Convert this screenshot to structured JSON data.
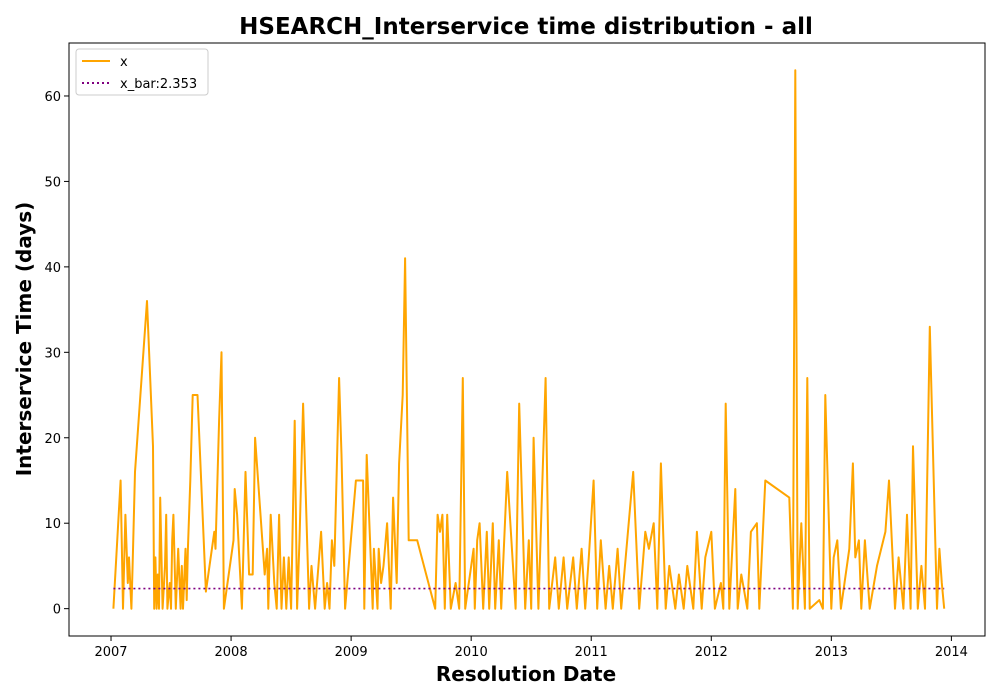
{
  "chart_data": {
    "type": "line",
    "title": "HSEARCH_Interservice time distribution - all",
    "xlabel": "Resolution Date",
    "ylabel": "Interservice Time (days)",
    "xlim": [
      2006.65,
      2014.28
    ],
    "ylim": [
      -3.2,
      66.2
    ],
    "xticks": [
      2007,
      2008,
      2009,
      2010,
      2011,
      2012,
      2013,
      2014
    ],
    "xtick_labels": [
      "2007",
      "2008",
      "2009",
      "2010",
      "2011",
      "2012",
      "2013",
      "2014"
    ],
    "yticks": [
      0,
      10,
      20,
      30,
      40,
      50,
      60
    ],
    "ytick_labels": [
      "0",
      "10",
      "20",
      "30",
      "40",
      "50",
      "60"
    ],
    "grid": false,
    "legend_position": "upper-left",
    "colors": {
      "series": "#ffa500",
      "mean": "#800080"
    },
    "series": [
      {
        "name": "x",
        "style": "solid",
        "x": [
          2007.02,
          2007.08,
          2007.1,
          2007.12,
          2007.14,
          2007.15,
          2007.17,
          2007.18,
          2007.2,
          2007.3,
          2007.35,
          2007.36,
          2007.37,
          2007.38,
          2007.39,
          2007.4,
          2007.41,
          2007.43,
          2007.45,
          2007.46,
          2007.47,
          2007.49,
          2007.5,
          2007.51,
          2007.52,
          2007.54,
          2007.56,
          2007.58,
          2007.59,
          2007.6,
          2007.62,
          2007.63,
          2007.64,
          2007.66,
          2007.68,
          2007.72,
          2007.79,
          2007.86,
          2007.87,
          2007.9,
          2007.92,
          2007.94,
          2008.02,
          2008.03,
          2008.05,
          2008.09,
          2008.12,
          2008.15,
          2008.18,
          2008.2,
          2008.28,
          2008.3,
          2008.31,
          2008.33,
          2008.36,
          2008.38,
          2008.4,
          2008.42,
          2008.44,
          2008.46,
          2008.48,
          2008.5,
          2008.53,
          2008.55,
          2008.57,
          2008.6,
          2008.65,
          2008.67,
          2008.7,
          2008.75,
          2008.78,
          2008.8,
          2008.82,
          2008.84,
          2008.86,
          2008.9,
          2008.92,
          2008.95,
          2009.04,
          2009.1,
          2009.11,
          2009.13,
          2009.18,
          2009.19,
          2009.22,
          2009.23,
          2009.25,
          2009.27,
          2009.3,
          2009.33,
          2009.35,
          2009.38,
          2009.4,
          2009.43,
          2009.45,
          2009.48,
          2009.55,
          2009.7,
          2009.72,
          2009.74,
          2009.76,
          2009.78,
          2009.8,
          2009.83,
          2009.87,
          2009.9,
          2009.93,
          2009.95,
          2010.02,
          2010.03,
          2010.05,
          2010.07,
          2010.1,
          2010.13,
          2010.15,
          2010.18,
          2010.2,
          2010.23,
          2010.25,
          2010.3,
          2010.37,
          2010.4,
          2010.45,
          2010.48,
          2010.5,
          2010.52,
          2010.56,
          2010.62,
          2010.65,
          2010.7,
          2010.73,
          2010.77,
          2010.8,
          2010.85,
          2010.88,
          2010.92,
          2010.95,
          2010.98,
          2011.02,
          2011.05,
          2011.08,
          2011.12,
          2011.15,
          2011.18,
          2011.22,
          2011.25,
          2011.3,
          2011.35,
          2011.4,
          2011.45,
          2011.48,
          2011.52,
          2011.55,
          2011.58,
          2011.62,
          2011.65,
          2011.7,
          2011.73,
          2011.77,
          2011.8,
          2011.85,
          2011.88,
          2011.92,
          2011.95,
          2012.0,
          2012.03,
          2012.08,
          2012.1,
          2012.12,
          2012.15,
          2012.2,
          2012.22,
          2012.25,
          2012.3,
          2012.33,
          2012.38,
          2012.4,
          2012.45,
          2012.65,
          2012.68,
          2012.7,
          2012.72,
          2012.75,
          2012.78,
          2012.8,
          2012.82,
          2012.9,
          2012.93,
          2012.95,
          2013.0,
          2013.02,
          2013.05,
          2013.08,
          2013.15,
          2013.18,
          2013.2,
          2013.23,
          2013.25,
          2013.28,
          2013.32,
          2013.38,
          2013.45,
          2013.48,
          2013.53,
          2013.56,
          2013.6,
          2013.63,
          2013.66,
          2013.68,
          2013.72,
          2013.75,
          2013.78,
          2013.82,
          2013.88,
          2013.9,
          2013.92,
          2013.94
        ],
        "y": [
          0,
          15,
          0,
          11,
          3,
          6,
          0,
          5,
          16,
          36,
          19,
          0,
          6,
          0,
          4,
          0,
          13,
          0,
          5,
          11,
          0,
          3,
          0,
          8,
          11,
          0,
          7,
          0,
          5,
          0,
          7,
          1,
          7,
          15,
          25,
          25,
          2,
          9,
          7,
          22,
          30,
          0,
          8,
          14,
          11,
          0,
          16,
          4,
          4,
          20,
          4,
          7,
          0,
          11,
          3,
          0,
          11,
          0,
          6,
          0,
          6,
          0,
          22,
          0,
          8,
          24,
          0,
          5,
          0,
          9,
          0,
          3,
          0,
          8,
          5,
          27,
          18,
          0,
          15,
          15,
          0,
          18,
          0,
          7,
          0,
          7,
          3,
          5,
          10,
          0,
          13,
          3,
          17,
          25,
          41,
          8,
          8,
          0,
          11,
          9,
          11,
          0,
          11,
          0,
          3,
          0,
          27,
          0,
          7,
          0,
          8,
          10,
          0,
          9,
          0,
          10,
          0,
          8,
          0,
          16,
          0,
          24,
          0,
          8,
          0,
          20,
          0,
          27,
          0,
          6,
          0,
          6,
          0,
          6,
          0,
          7,
          0,
          6,
          15,
          0,
          8,
          0,
          5,
          0,
          7,
          0,
          8,
          16,
          0,
          9,
          7,
          10,
          0,
          17,
          0,
          5,
          0,
          4,
          0,
          5,
          0,
          9,
          0,
          6,
          9,
          0,
          3,
          0,
          24,
          0,
          14,
          0,
          4,
          0,
          9,
          10,
          0,
          15,
          13,
          0,
          63,
          0,
          10,
          0,
          27,
          0,
          1,
          0,
          25,
          0,
          6,
          8,
          0,
          7,
          17,
          6,
          8,
          0,
          8,
          0,
          5,
          9,
          15,
          0,
          6,
          0,
          11,
          0,
          19,
          0,
          5,
          0,
          33,
          0,
          7,
          3,
          0
        ]
      },
      {
        "name": "x_bar:2.353",
        "style": "dotted",
        "x": [
          2007.02,
          2013.94
        ],
        "y": [
          2.353,
          2.353
        ]
      }
    ]
  }
}
